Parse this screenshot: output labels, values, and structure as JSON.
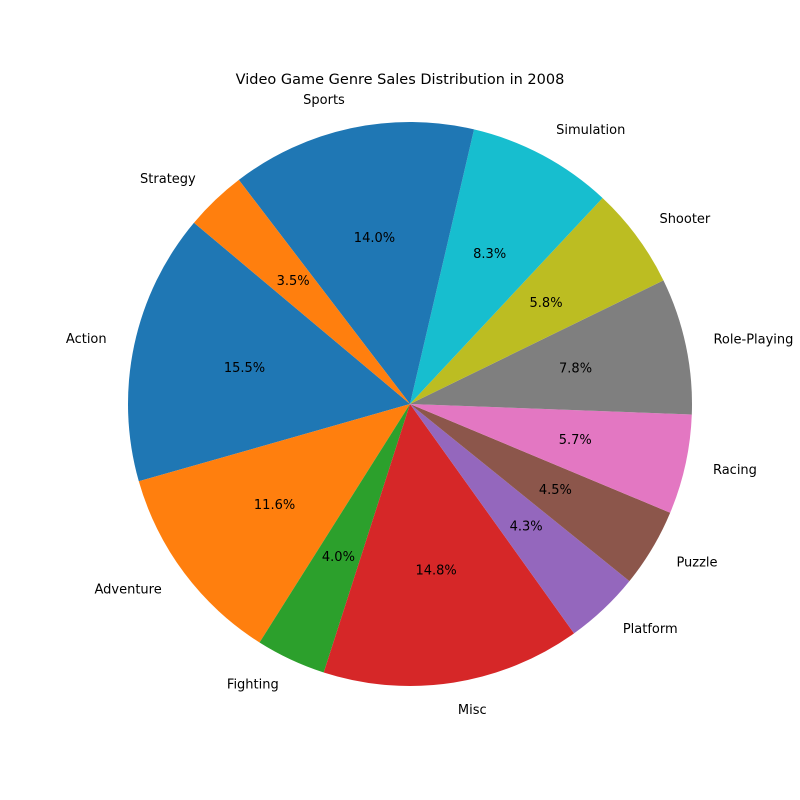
{
  "chart_data": {
    "type": "pie",
    "title": "Video Game Genre Sales Distribution in 2008",
    "slices": [
      {
        "label": "Action",
        "value": 15.5,
        "pct_label": "15.5%",
        "color": "#1f77b4"
      },
      {
        "label": "Adventure",
        "value": 11.6,
        "pct_label": "11.6%",
        "color": "#ff7f0e"
      },
      {
        "label": "Fighting",
        "value": 4.0,
        "pct_label": "4.0%",
        "color": "#2ca02c"
      },
      {
        "label": "Misc",
        "value": 14.8,
        "pct_label": "14.8%",
        "color": "#d62728"
      },
      {
        "label": "Platform",
        "value": 4.3,
        "pct_label": "4.3%",
        "color": "#9467bd"
      },
      {
        "label": "Puzzle",
        "value": 4.5,
        "pct_label": "4.5%",
        "color": "#8c564b"
      },
      {
        "label": "Racing",
        "value": 5.7,
        "pct_label": "5.7%",
        "color": "#e377c2"
      },
      {
        "label": "Role-Playing",
        "value": 7.8,
        "pct_label": "7.8%",
        "color": "#7f7f7f"
      },
      {
        "label": "Shooter",
        "value": 5.8,
        "pct_label": "5.8%",
        "color": "#bcbd22"
      },
      {
        "label": "Simulation",
        "value": 8.3,
        "pct_label": "8.3%",
        "color": "#17becf"
      },
      {
        "label": "Sports",
        "value": 14.0,
        "pct_label": "14.0%",
        "color": "#1f77b4"
      },
      {
        "label": "Strategy",
        "value": 3.5,
        "pct_label": "3.5%",
        "color": "#ff7f0e"
      }
    ],
    "start_angle_deg": 140,
    "direction": "counterclockwise",
    "legend": "none"
  }
}
